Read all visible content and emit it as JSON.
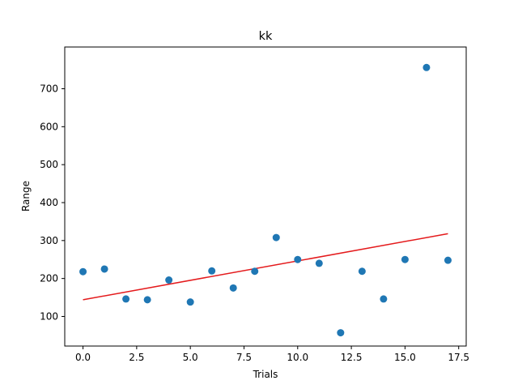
{
  "chart_data": {
    "type": "scatter",
    "title": "kk",
    "xlabel": "Trials",
    "ylabel": "Range",
    "xlim": [
      -0.85,
      17.85
    ],
    "ylim": [
      22,
      810
    ],
    "xticks": [
      0.0,
      2.5,
      5.0,
      7.5,
      10.0,
      12.5,
      15.0,
      17.5
    ],
    "xtick_labels": [
      "0.0",
      "2.5",
      "5.0",
      "7.5",
      "10.0",
      "12.5",
      "15.0",
      "17.5"
    ],
    "yticks": [
      100,
      200,
      300,
      400,
      500,
      600,
      700
    ],
    "ytick_labels": [
      "100",
      "200",
      "300",
      "400",
      "500",
      "600",
      "700"
    ],
    "grid": false,
    "series": [
      {
        "kind": "scatter",
        "color": "#1f77b4",
        "x": [
          0,
          1,
          2,
          3,
          4,
          5,
          6,
          7,
          8,
          9,
          10,
          11,
          12,
          13,
          14,
          15,
          16,
          17
        ],
        "y": [
          218,
          225,
          146,
          144,
          196,
          138,
          220,
          175,
          219,
          308,
          250,
          240,
          57,
          219,
          146,
          250,
          756,
          248
        ]
      },
      {
        "kind": "line",
        "color": "#e41a1c",
        "x": [
          0,
          17
        ],
        "y": [
          144,
          318
        ]
      }
    ]
  }
}
